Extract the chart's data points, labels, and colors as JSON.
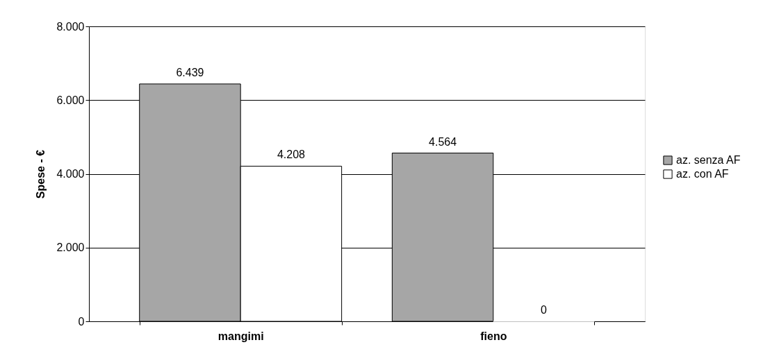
{
  "chart_data": {
    "type": "bar",
    "ylabel": "Spese - €",
    "categories": [
      "mangimi",
      "fieno"
    ],
    "series": [
      {
        "name": "az. senza AF",
        "color": "#a6a6a6",
        "values": [
          6439,
          4564
        ],
        "value_labels": [
          "6.439",
          "4.564"
        ]
      },
      {
        "name": "az. con AF",
        "color": "#ffffff",
        "values": [
          4208,
          0
        ],
        "value_labels": [
          "4.208",
          "0"
        ]
      }
    ],
    "ylim": [
      0,
      8000
    ],
    "yticks": [
      {
        "value": 0,
        "label": "0"
      },
      {
        "value": 2000,
        "label": "2.000"
      },
      {
        "value": 4000,
        "label": "4.000"
      },
      {
        "value": 6000,
        "label": "6.000"
      },
      {
        "value": 8000,
        "label": "8.000"
      }
    ],
    "grid": "y",
    "legend": "right"
  }
}
